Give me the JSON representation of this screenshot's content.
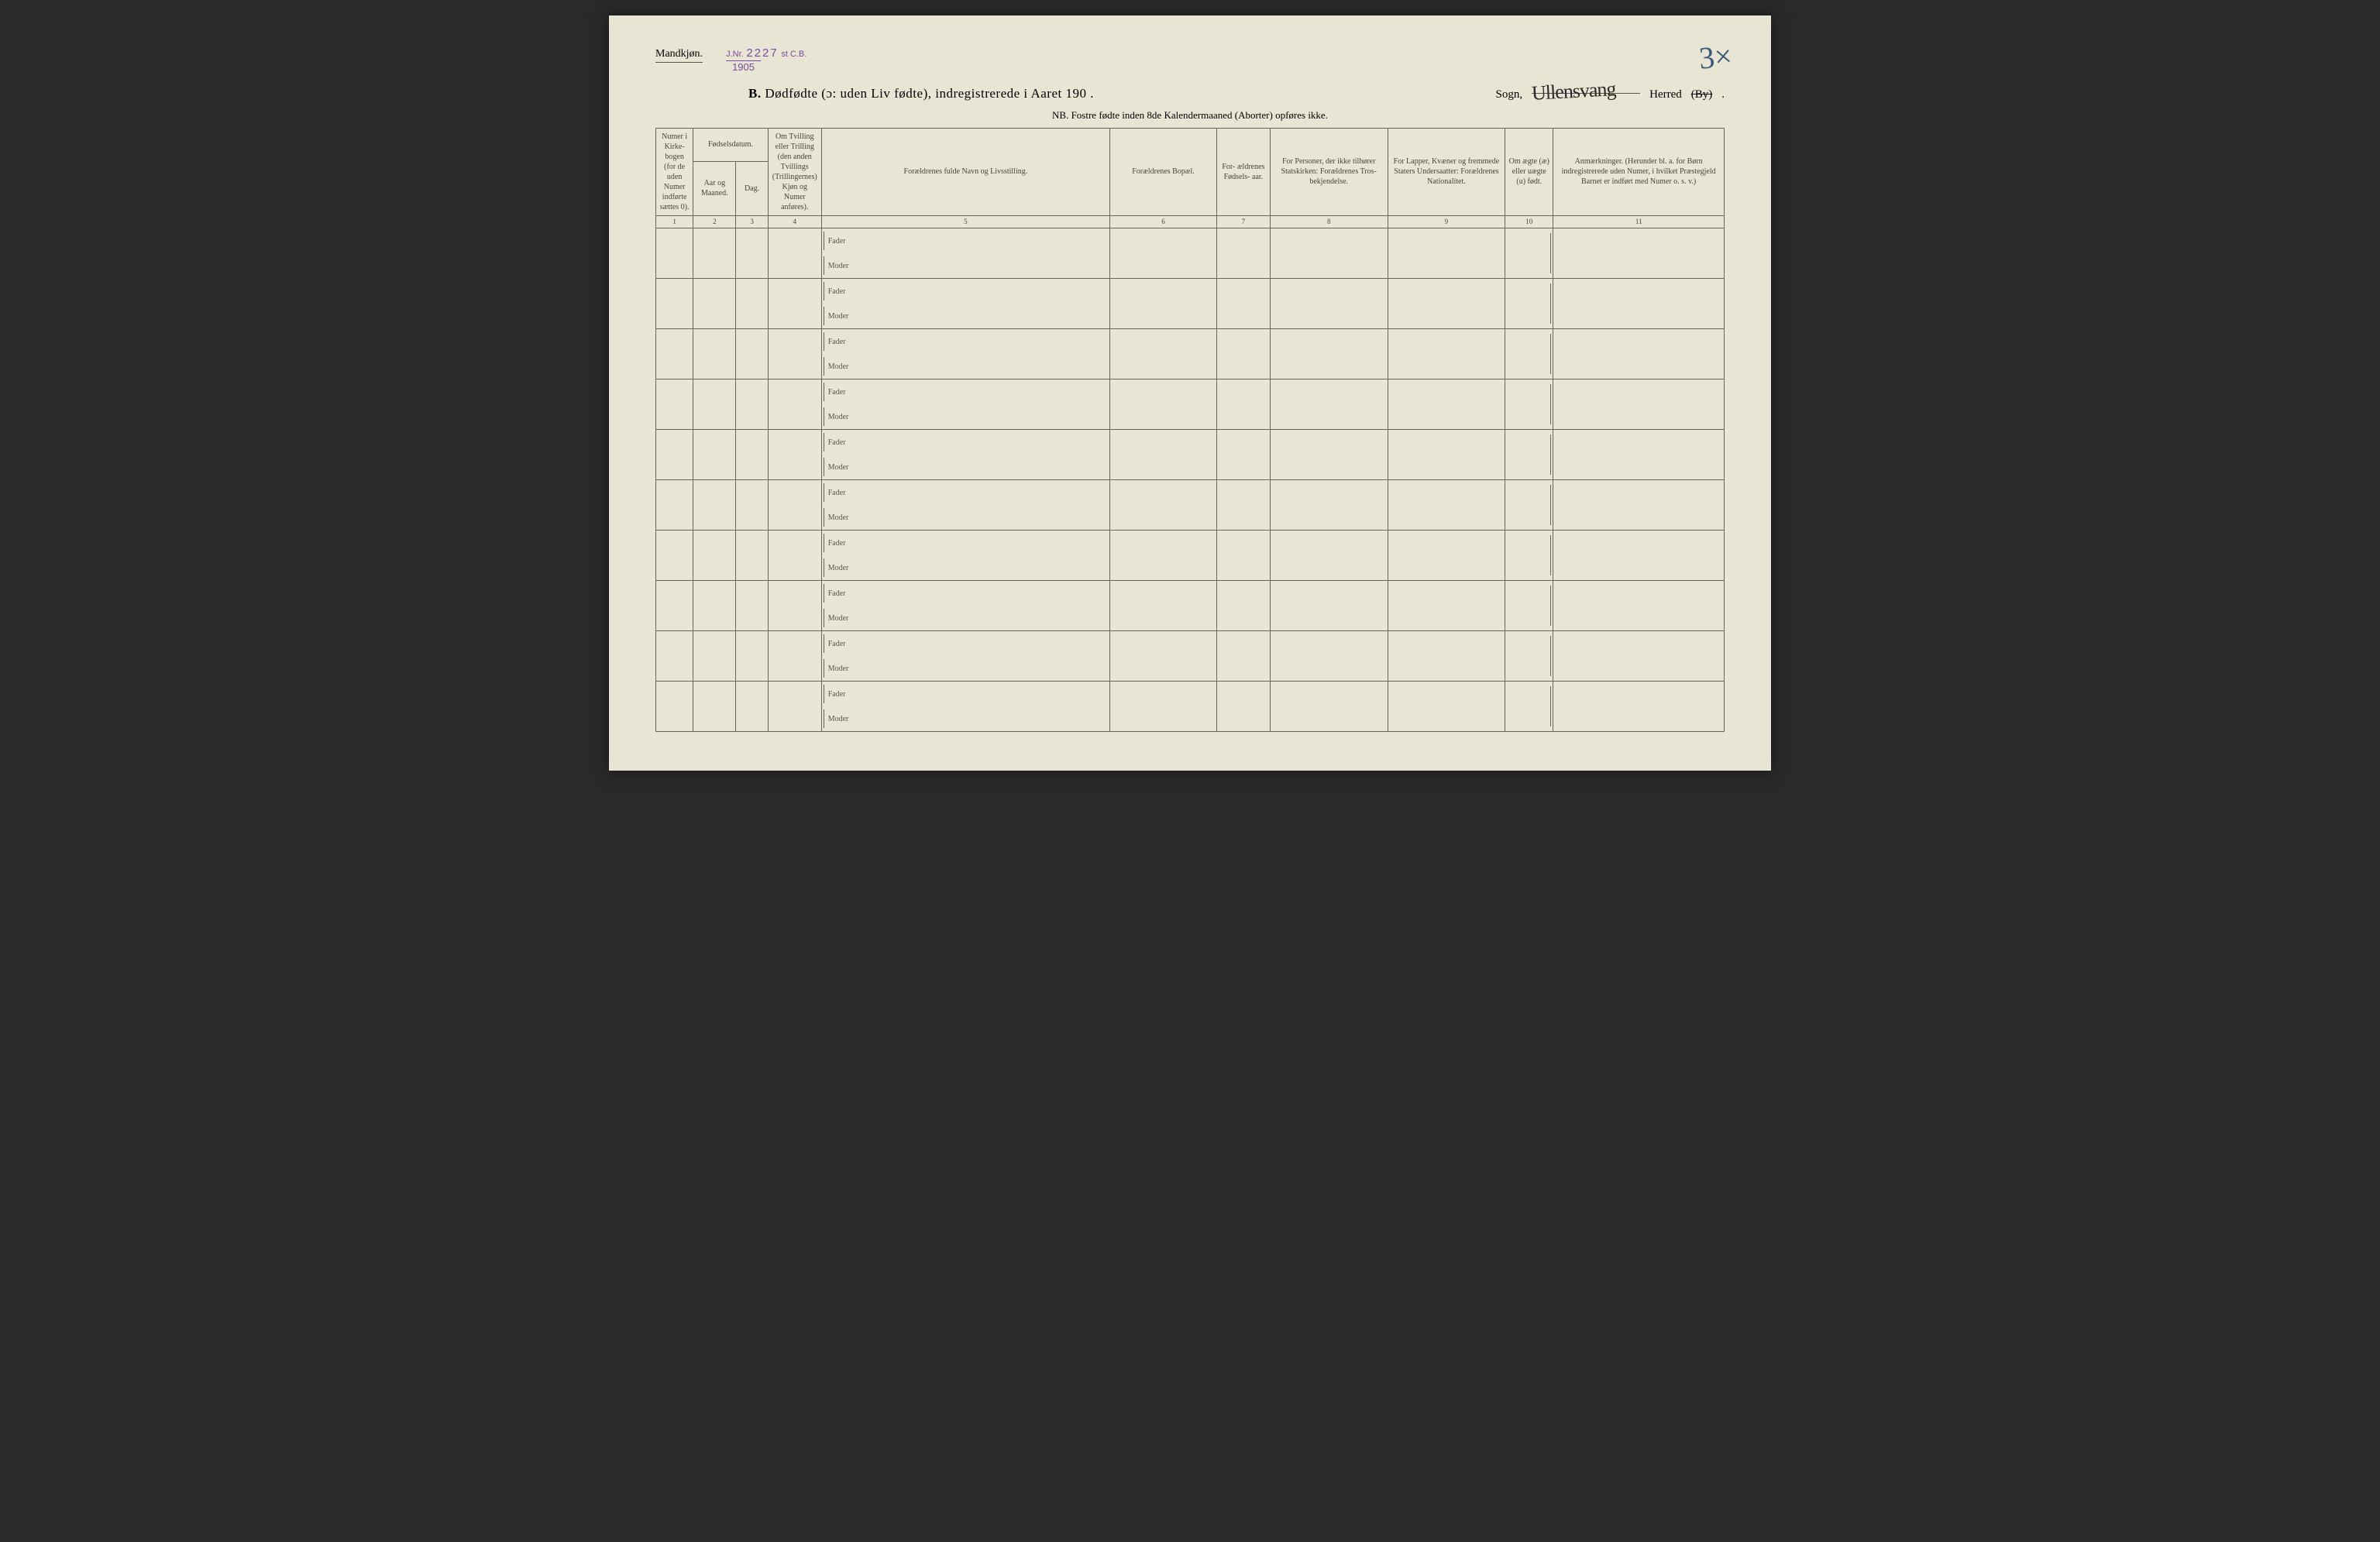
{
  "gender": "Mandkjøn.",
  "stamp": {
    "nr": "J.Nr.",
    "num": "2227",
    "suffix": "st C.B.",
    "year": "1905"
  },
  "title": {
    "b": "B.",
    "text": "Dødfødte (ɔ: uden Liv fødte), indregistrerede i Aaret 190",
    "dot": "."
  },
  "sogn_label": "Sogn,",
  "sogn_signature": "Ullensvang",
  "herred_label": "Herred",
  "herred_cross": "(By)",
  "corner": "3×",
  "nb": "NB. Fostre fødte inden 8de Kalendermaaned (Aborter) opføres ikke.",
  "headers": {
    "1": "Numer i Kirke- bogen (for de uden Numer indførte sættes 0).",
    "group2": "Fødselsdatum.",
    "2": "Aar og Maaned.",
    "3": "Dag.",
    "4": "Om Tvilling eller Trilling (den anden Tvillings (Trillingernes) Kjøn og Numer anføres).",
    "5": "Forældrenes fulde Navn og Livsstilling.",
    "6": "Forældrenes Bopæl.",
    "7": "For- ældrenes Fødsels- aar.",
    "8": "For Personer, der ikke tilhører Statskirken: Forældrenes Tros- bekjendelse.",
    "9": "For Lapper, Kvæner og fremmede Staters Undersaatter: Forældrenes Nationalitet.",
    "10": "Om ægte (æ) eller uægte (u) født.",
    "11": "Anmærkninger. (Herunder bl. a. for Børn indregistrerede uden Numer, i hvilket Præstegjeld Barnet er indført med Numer o. s. v.)"
  },
  "colnums": [
    "1",
    "2",
    "3",
    "4",
    "5",
    "6",
    "7",
    "8",
    "9",
    "10",
    "11"
  ],
  "fader": "Fader",
  "moder": "Moder",
  "row_count": 10,
  "colors": {
    "paper": "#e8e5d4",
    "ink": "#4a4535",
    "rule": "#6a6550",
    "stamp": "#7a4a9e",
    "pencil": "#3a5a7a"
  }
}
